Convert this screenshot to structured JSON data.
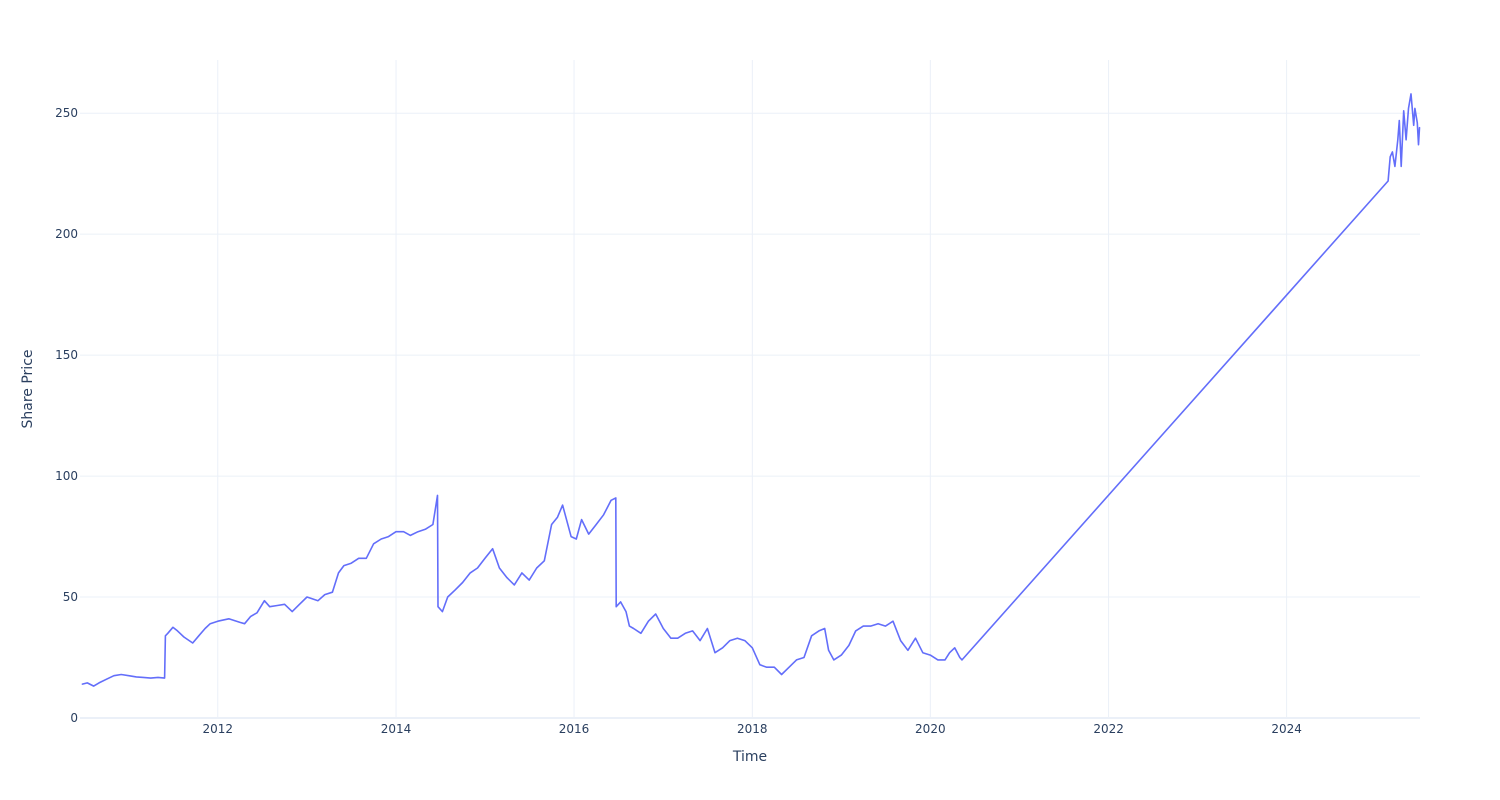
{
  "chart_data": {
    "type": "line",
    "title": "",
    "xlabel": "Time",
    "ylabel": "Share Price",
    "x_is_date": true,
    "xlim": [
      "2010-06-15",
      "2025-07-01"
    ],
    "ylim": [
      0,
      272
    ],
    "x_ticks": [
      "2012",
      "2014",
      "2016",
      "2018",
      "2020",
      "2022",
      "2024"
    ],
    "y_ticks": [
      0,
      50,
      100,
      150,
      200,
      250
    ],
    "grid": true,
    "legend": "none",
    "colors": {
      "line": "#636efa",
      "grid": "#ebf0f8",
      "text": "#2a3f5f"
    },
    "series": [
      {
        "x": [
          "2010-06-25",
          "2010-07-15",
          "2010-08-10",
          "2010-09-01",
          "2010-10-01",
          "2010-11-01",
          "2010-12-01",
          "2011-01-01",
          "2011-02-01",
          "2011-03-01",
          "2011-04-01",
          "2011-05-01",
          "2011-05-28",
          "2011-05-31",
          "2011-06-10",
          "2011-07-01",
          "2011-07-20",
          "2011-08-15",
          "2011-09-20",
          "2011-10-15",
          "2011-11-10",
          "2011-12-01",
          "2012-01-01",
          "2012-02-15",
          "2012-04-01",
          "2012-04-20",
          "2012-05-15",
          "2012-06-10",
          "2012-07-10",
          "2012-08-01",
          "2012-09-01",
          "2012-10-01",
          "2012-11-01",
          "2012-12-01",
          "2013-01-01",
          "2013-02-15",
          "2013-03-15",
          "2013-04-15",
          "2013-05-10",
          "2013-06-01",
          "2013-07-01",
          "2013-08-01",
          "2013-09-01",
          "2013-10-01",
          "2013-11-01",
          "2013-12-01",
          "2014-01-01",
          "2014-02-01",
          "2014-03-01",
          "2014-04-01",
          "2014-05-01",
          "2014-06-01",
          "2014-06-20",
          "2014-06-22",
          "2014-07-10",
          "2014-08-01",
          "2014-09-01",
          "2014-10-01",
          "2014-11-01",
          "2014-12-01",
          "2015-01-01",
          "2015-02-01",
          "2015-03-01",
          "2015-04-01",
          "2015-05-01",
          "2015-06-01",
          "2015-07-01",
          "2015-08-01",
          "2015-09-01",
          "2015-10-01",
          "2015-10-25",
          "2015-11-15",
          "2015-12-01",
          "2015-12-20",
          "2016-01-10",
          "2016-02-01",
          "2016-03-01",
          "2016-04-01",
          "2016-05-01",
          "2016-06-01",
          "2016-06-20",
          "2016-06-22",
          "2016-07-10",
          "2016-08-01",
          "2016-08-15",
          "2016-09-01",
          "2016-10-01",
          "2016-11-01",
          "2016-12-01",
          "2017-01-01",
          "2017-02-01",
          "2017-03-01",
          "2017-04-01",
          "2017-05-01",
          "2017-06-01",
          "2017-07-01",
          "2017-08-01",
          "2017-09-01",
          "2017-10-01",
          "2017-11-01",
          "2017-12-01",
          "2018-01-01",
          "2018-02-01",
          "2018-03-01",
          "2018-04-01",
          "2018-05-01",
          "2018-06-01",
          "2018-07-01",
          "2018-08-01",
          "2018-09-01",
          "2018-10-01",
          "2018-10-25",
          "2018-11-10",
          "2018-12-01",
          "2019-01-01",
          "2019-02-01",
          "2019-03-01",
          "2019-04-01",
          "2019-05-01",
          "2019-06-01",
          "2019-07-01",
          "2019-08-01",
          "2019-09-01",
          "2019-10-01",
          "2019-11-01",
          "2019-12-01",
          "2020-01-01",
          "2020-02-01",
          "2020-03-01",
          "2020-03-20",
          "2020-04-10",
          "2020-05-01",
          "2020-05-10",
          "2025-02-20",
          "2025-03-01",
          "2025-03-10",
          "2025-03-20",
          "2025-04-01",
          "2025-04-07",
          "2025-04-15",
          "2025-04-25",
          "2025-05-05",
          "2025-05-15",
          "2025-05-25",
          "2025-06-05",
          "2025-06-10",
          "2025-06-20",
          "2025-06-25",
          "2025-06-29"
        ],
        "y": [
          14,
          14.5,
          13.2,
          14.5,
          16,
          17.5,
          18,
          17.5,
          17,
          16.8,
          16.5,
          16.8,
          16.5,
          34,
          35,
          37.5,
          36,
          33.5,
          31,
          34,
          37,
          39,
          40,
          41,
          39.5,
          39,
          42,
          43.5,
          48.5,
          46,
          46.5,
          47,
          44,
          47,
          50,
          48.5,
          51,
          52,
          60,
          63,
          64,
          66,
          66,
          72,
          74,
          75,
          77,
          77,
          75.5,
          77,
          78,
          80,
          92,
          46,
          44,
          50,
          53,
          56,
          60,
          62,
          66,
          70,
          62,
          58,
          55,
          60,
          57,
          62,
          65,
          80,
          83,
          88,
          82,
          75,
          74,
          82,
          76,
          80,
          84,
          90,
          91,
          46,
          48,
          44,
          38,
          37,
          35,
          40,
          43,
          37,
          33,
          33,
          35,
          36,
          32,
          37,
          27,
          29,
          32,
          33,
          32,
          29,
          22,
          21,
          21,
          18,
          21,
          24,
          25,
          34,
          36,
          37,
          28,
          24,
          26,
          30,
          36,
          38,
          38,
          39,
          38,
          40,
          32,
          28,
          33,
          27,
          26,
          24,
          24,
          27,
          29,
          25,
          24,
          222,
          232,
          234,
          228,
          239,
          247,
          228,
          251,
          239,
          252,
          258,
          245,
          252,
          246,
          237,
          244
        ]
      }
    ]
  }
}
